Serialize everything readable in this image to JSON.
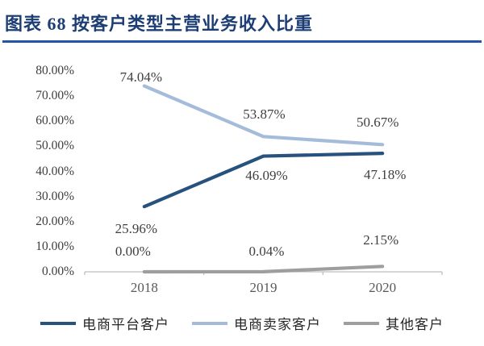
{
  "figure": {
    "title": "图表 68  按客户类型主营业务收入比重",
    "title_color": "#1c3e74",
    "rule_color": "#2255a4"
  },
  "chart_data": {
    "type": "line",
    "title": "按客户类型主营业务收入比重",
    "categories": [
      "2018",
      "2019",
      "2020"
    ],
    "series": [
      {
        "name": "电商平台客户",
        "color": "#27527d",
        "values": [
          25.96,
          46.09,
          47.18
        ],
        "point_labels": [
          "25.96%",
          "46.09%",
          "47.18%"
        ],
        "label_offsets": [
          [
            -10,
            28
          ],
          [
            4,
            24
          ],
          [
            3,
            27
          ]
        ]
      },
      {
        "name": "电商卖家客户",
        "color": "#a4bbd9",
        "values": [
          74.04,
          53.87,
          50.67
        ],
        "point_labels": [
          "74.04%",
          "53.87%",
          "50.67%"
        ],
        "label_offsets": [
          [
            -4,
            -11
          ],
          [
            1,
            -27
          ],
          [
            -6,
            -27
          ]
        ]
      },
      {
        "name": "其他客户",
        "color": "#9e9e9e",
        "values": [
          0.0,
          0.04,
          2.15
        ],
        "point_labels": [
          "0.00%",
          "0.04%",
          "2.15%"
        ],
        "label_offsets": [
          [
            -14,
            -25
          ],
          [
            4,
            -25
          ],
          [
            -2,
            -32
          ]
        ]
      }
    ],
    "xlabel": "",
    "ylabel": "",
    "ylim": [
      0,
      80
    ],
    "ytick_labels": [
      "80.00%",
      "70.00%",
      "60.00%",
      "50.00%",
      "40.00%",
      "30.00%",
      "20.00%",
      "10.00%",
      "0.00%"
    ],
    "ytick_values": [
      80,
      70,
      60,
      50,
      40,
      30,
      20,
      10,
      0
    ],
    "grid": false,
    "legend_position": "bottom",
    "axis_color": "#bfbfbf"
  }
}
